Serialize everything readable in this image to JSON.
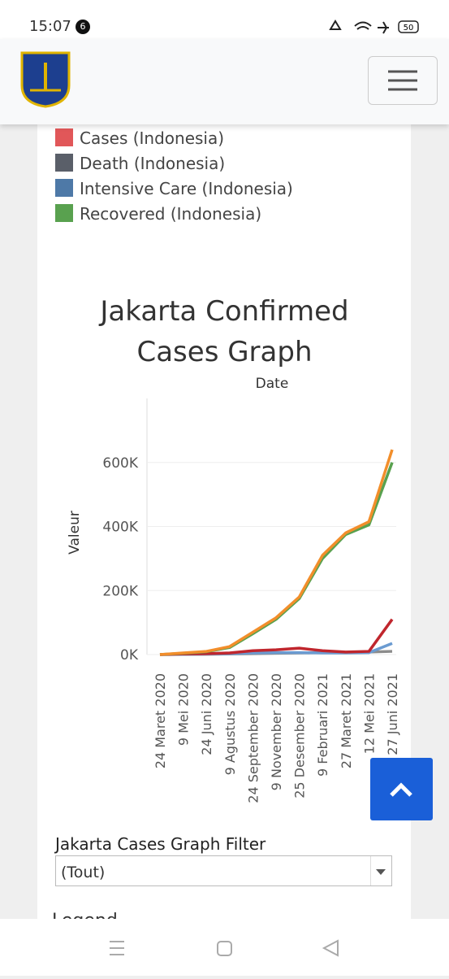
{
  "status_bar": {
    "time": "15:07",
    "notification_count": "6",
    "battery": "50"
  },
  "legend": {
    "items": [
      {
        "label": "Cases (Indonesia)",
        "color": "#e15759"
      },
      {
        "label": "Death (Indonesia)",
        "color": "#5a5f69"
      },
      {
        "label": "Intensive Care (Indonesia)",
        "color": "#4e79a7"
      },
      {
        "label": "Recovered (Indonesia)",
        "color": "#59a14f"
      }
    ]
  },
  "chart": {
    "type": "line",
    "title": "Jakarta Confirmed Cases Graph",
    "x_label": "Date",
    "y_label": "Valeur",
    "categories": [
      "24 Maret 2020",
      "9 Mei 2020",
      "24 Juni 2020",
      "9 Agustus 2020",
      "24 September 2020",
      "9 November 2020",
      "25 Desember 2020",
      "9 Februari 2021",
      "27 Maret 2021",
      "12 Mei 2021",
      "27 Juni 2021"
    ],
    "ylim": [
      0,
      800000
    ],
    "yticks": [
      {
        "value": 0,
        "label": "0K"
      },
      {
        "value": 200000,
        "label": "200K"
      },
      {
        "value": 400000,
        "label": "400K"
      },
      {
        "value": 600000,
        "label": "600K"
      }
    ],
    "grid": true,
    "series": [
      {
        "color": "#8c8c8c",
        "values": [
          0,
          500,
          1000,
          2000,
          3000,
          4000,
          5000,
          6000,
          7000,
          8000,
          10000
        ]
      },
      {
        "color": "#6b9bd1",
        "values": [
          0,
          1000,
          2000,
          3000,
          5000,
          6000,
          6000,
          5000,
          5000,
          6000,
          35000
        ]
      },
      {
        "color": "#c0262d",
        "values": [
          0,
          2000,
          3000,
          5000,
          12000,
          15000,
          20000,
          12000,
          8000,
          10000,
          110000
        ]
      },
      {
        "color": "#59a14f",
        "values": [
          0,
          4000,
          9000,
          22000,
          65000,
          110000,
          175000,
          300000,
          375000,
          405000,
          600000
        ]
      },
      {
        "color": "#f28e2b",
        "values": [
          0,
          5000,
          10000,
          25000,
          70000,
          115000,
          180000,
          310000,
          380000,
          415000,
          640000
        ]
      }
    ]
  },
  "filter": {
    "label": "Jakarta Cases Graph Filter",
    "selected": "(Tout)"
  },
  "next_section": "Legend"
}
